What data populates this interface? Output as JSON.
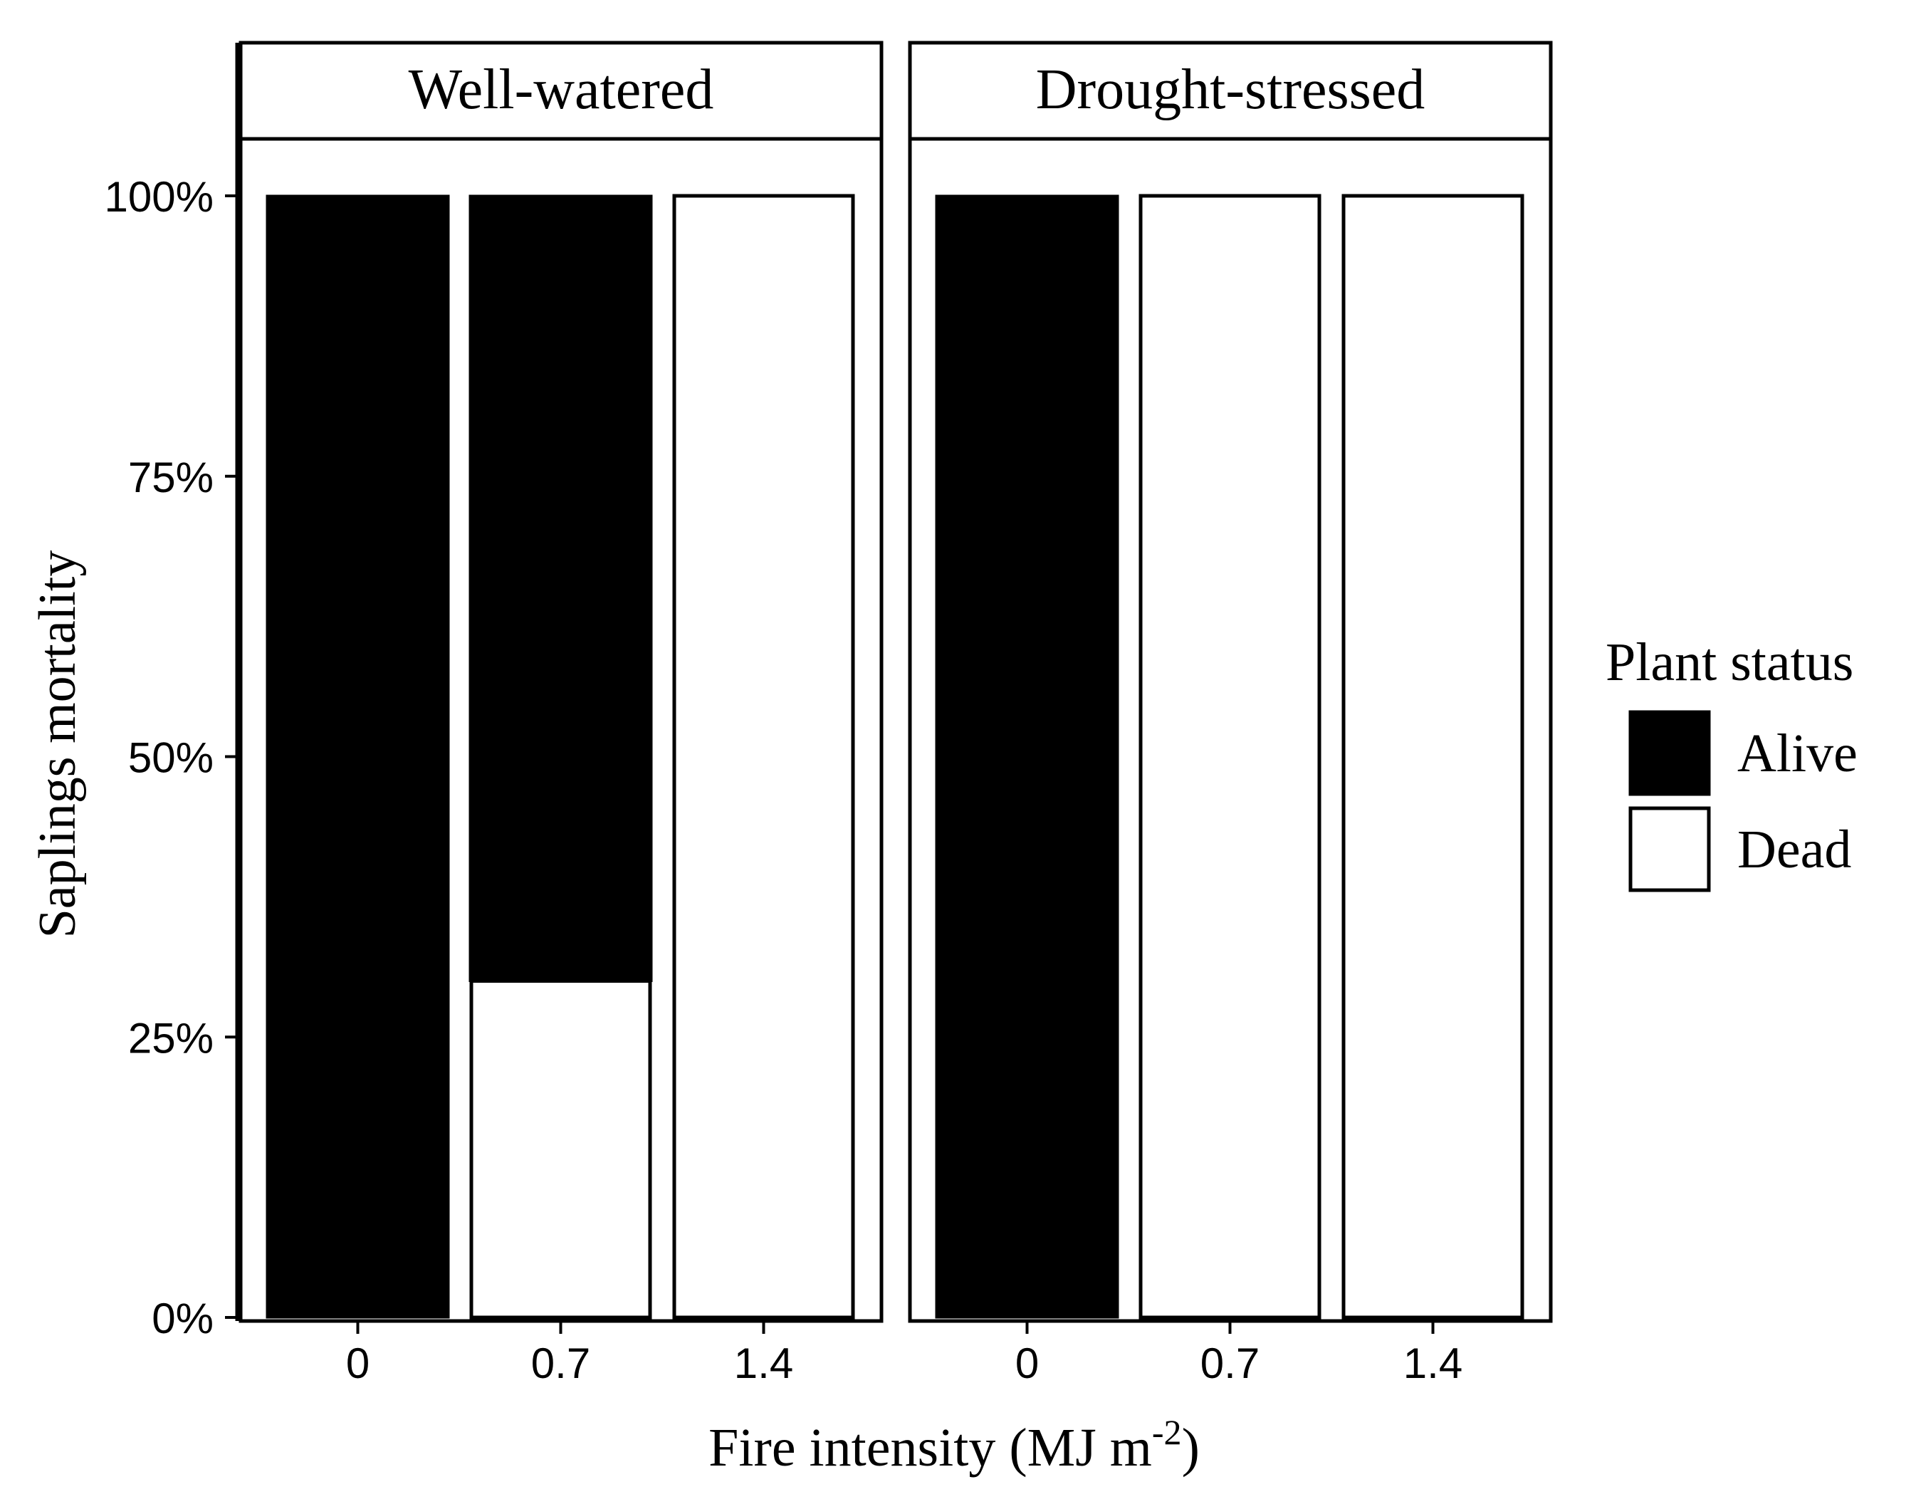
{
  "chart_data": {
    "type": "bar",
    "stacked": true,
    "xlabel": "Fire intensity (MJ m",
    "xlabel_sup": "-2",
    "xlabel_end": ")",
    "ylabel": "Saplings mortality",
    "ylim": [
      0,
      100
    ],
    "y_ticks": [
      "0%",
      "25%",
      "50%",
      "75%",
      "100%"
    ],
    "y_tick_values": [
      0,
      25,
      50,
      75,
      100
    ],
    "categories": [
      "0",
      "0.7",
      "1.4"
    ],
    "grid": false,
    "legend": {
      "title": "Plant status",
      "placement": "right",
      "entries": [
        {
          "name": "Alive",
          "color": "#000000"
        },
        {
          "name": "Dead",
          "color": "#ffffff"
        }
      ]
    },
    "panels": [
      {
        "name": "Well-watered",
        "series": [
          {
            "name": "Dead",
            "values": [
              0,
              30,
              100
            ]
          },
          {
            "name": "Alive",
            "values": [
              100,
              70,
              0
            ]
          }
        ]
      },
      {
        "name": "Drought-stressed",
        "series": [
          {
            "name": "Dead",
            "values": [
              0,
              100,
              100
            ]
          },
          {
            "name": "Alive",
            "values": [
              100,
              0,
              0
            ]
          }
        ]
      }
    ]
  }
}
